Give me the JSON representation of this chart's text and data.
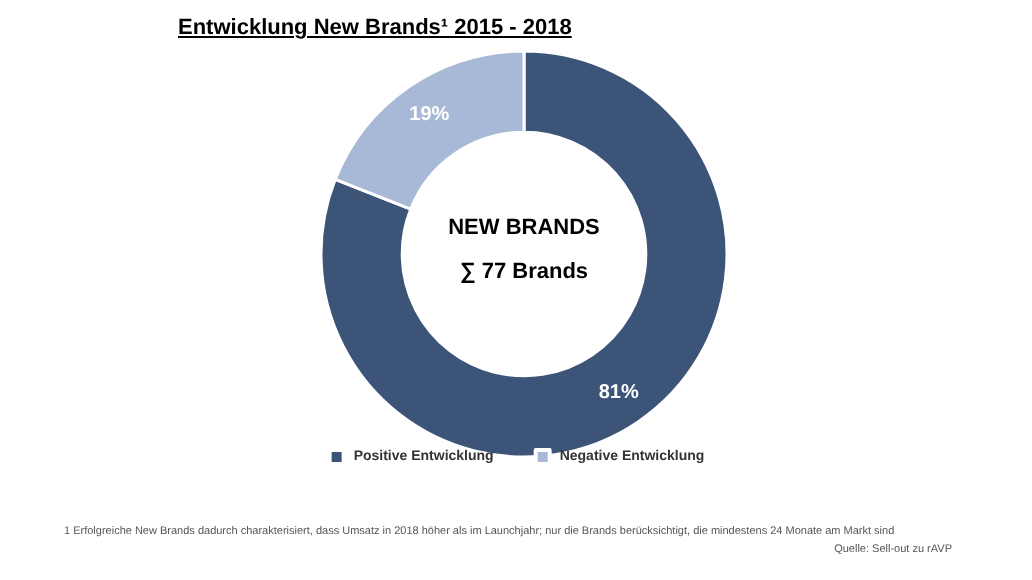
{
  "chart_data": {
    "type": "donut",
    "title": "Entwicklung New Brands¹ 2015 - 2018",
    "categories": [
      "Positive Entwicklung",
      "Negative Entwicklung"
    ],
    "values": [
      81,
      19
    ],
    "colors": [
      "#3d5479",
      "#a7b9d6"
    ],
    "value_labels": [
      "81%",
      "19%"
    ],
    "legend": "bottom",
    "annotations": [
      "NEW BRANDS",
      "∑ 77 Brands",
      "1   Erfolgreiche New Brands dadurch charakterisiert, dass Umsatz in 2018 höher als im Launchjahr; nur die Brands berücksichtigt, die mindestens 24 Monate am Markt sind",
      "Quelle: Sell-out zu rAVP"
    ]
  }
}
